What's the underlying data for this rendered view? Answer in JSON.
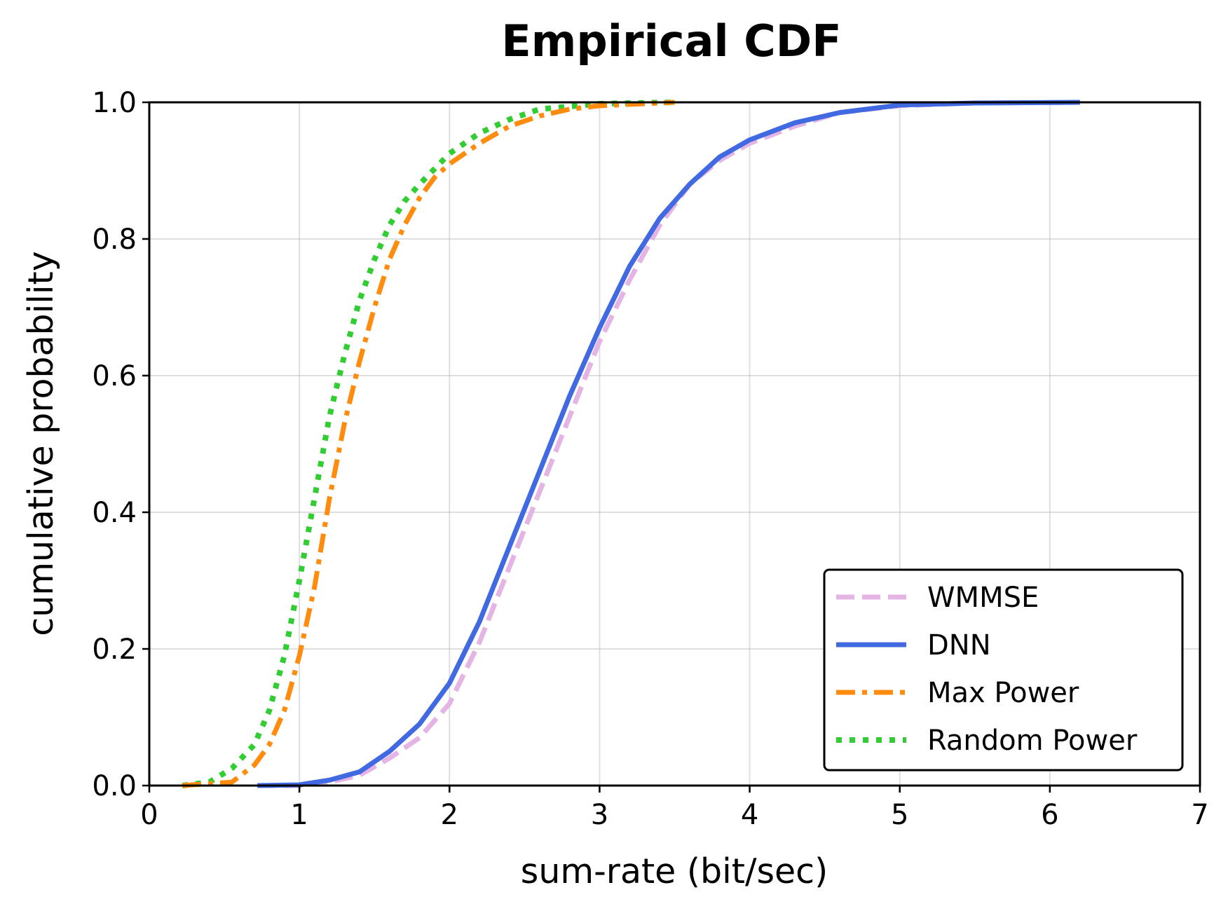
{
  "chart_data": {
    "type": "line",
    "title": "Empirical CDF",
    "xlabel": "sum-rate (bit/sec)",
    "ylabel": "cumulative probability",
    "xlim": [
      0,
      7
    ],
    "ylim": [
      0,
      1.0
    ],
    "xticks": [
      0,
      1,
      2,
      3,
      4,
      5,
      6,
      7
    ],
    "xtick_labels": [
      "0",
      "1",
      "2",
      "3",
      "4",
      "5",
      "6",
      "7"
    ],
    "yticks": [
      0,
      0.2,
      0.4,
      0.6,
      0.8,
      1.0
    ],
    "ytick_labels": [
      "0.0",
      "0.2",
      "0.4",
      "0.6",
      "0.8",
      "1.0"
    ],
    "grid": true,
    "legend_position": "lower-right",
    "series": [
      {
        "name": "WMMSE",
        "color": "#e4b4e4",
        "style": "dashed",
        "x": [
          0.72,
          1.0,
          1.2,
          1.4,
          1.6,
          1.8,
          2.0,
          2.2,
          2.4,
          2.6,
          2.8,
          3.0,
          3.2,
          3.4,
          3.6,
          3.8,
          4.0,
          4.3,
          4.6,
          5.0,
          5.5,
          6.2
        ],
        "y": [
          0.0,
          0.0,
          0.005,
          0.015,
          0.04,
          0.07,
          0.12,
          0.21,
          0.32,
          0.43,
          0.54,
          0.65,
          0.74,
          0.82,
          0.88,
          0.915,
          0.94,
          0.965,
          0.985,
          0.995,
          0.999,
          1.0
        ]
      },
      {
        "name": "DNN",
        "color": "#4169e1",
        "style": "solid",
        "x": [
          0.72,
          1.0,
          1.2,
          1.4,
          1.6,
          1.8,
          2.0,
          2.2,
          2.4,
          2.6,
          2.8,
          3.0,
          3.2,
          3.4,
          3.6,
          3.8,
          4.0,
          4.3,
          4.6,
          5.0,
          5.5,
          6.2
        ],
        "y": [
          0.0,
          0.001,
          0.008,
          0.02,
          0.05,
          0.09,
          0.15,
          0.24,
          0.35,
          0.46,
          0.57,
          0.67,
          0.76,
          0.83,
          0.88,
          0.92,
          0.945,
          0.97,
          0.985,
          0.996,
          0.999,
          1.0
        ]
      },
      {
        "name": "Max Power",
        "color": "#ff8c0e",
        "style": "dashdot",
        "x": [
          0.22,
          0.55,
          0.7,
          0.8,
          0.9,
          1.0,
          1.1,
          1.2,
          1.3,
          1.4,
          1.5,
          1.6,
          1.7,
          1.8,
          1.9,
          2.0,
          2.2,
          2.4,
          2.6,
          2.8,
          3.0,
          3.5
        ],
        "y": [
          0.0,
          0.005,
          0.03,
          0.06,
          0.11,
          0.19,
          0.29,
          0.42,
          0.53,
          0.62,
          0.7,
          0.77,
          0.82,
          0.86,
          0.89,
          0.91,
          0.94,
          0.965,
          0.98,
          0.99,
          0.995,
          1.0
        ]
      },
      {
        "name": "Random Power",
        "color": "#32cd32",
        "style": "dotted",
        "x": [
          0.22,
          0.4,
          0.55,
          0.7,
          0.8,
          0.9,
          1.0,
          1.1,
          1.2,
          1.3,
          1.4,
          1.5,
          1.6,
          1.7,
          1.8,
          2.0,
          2.2,
          2.4,
          2.6,
          3.0,
          3.5
        ],
        "y": [
          0.0,
          0.005,
          0.025,
          0.06,
          0.11,
          0.19,
          0.3,
          0.42,
          0.54,
          0.63,
          0.71,
          0.77,
          0.82,
          0.855,
          0.88,
          0.925,
          0.955,
          0.975,
          0.99,
          0.998,
          1.0
        ]
      }
    ]
  }
}
